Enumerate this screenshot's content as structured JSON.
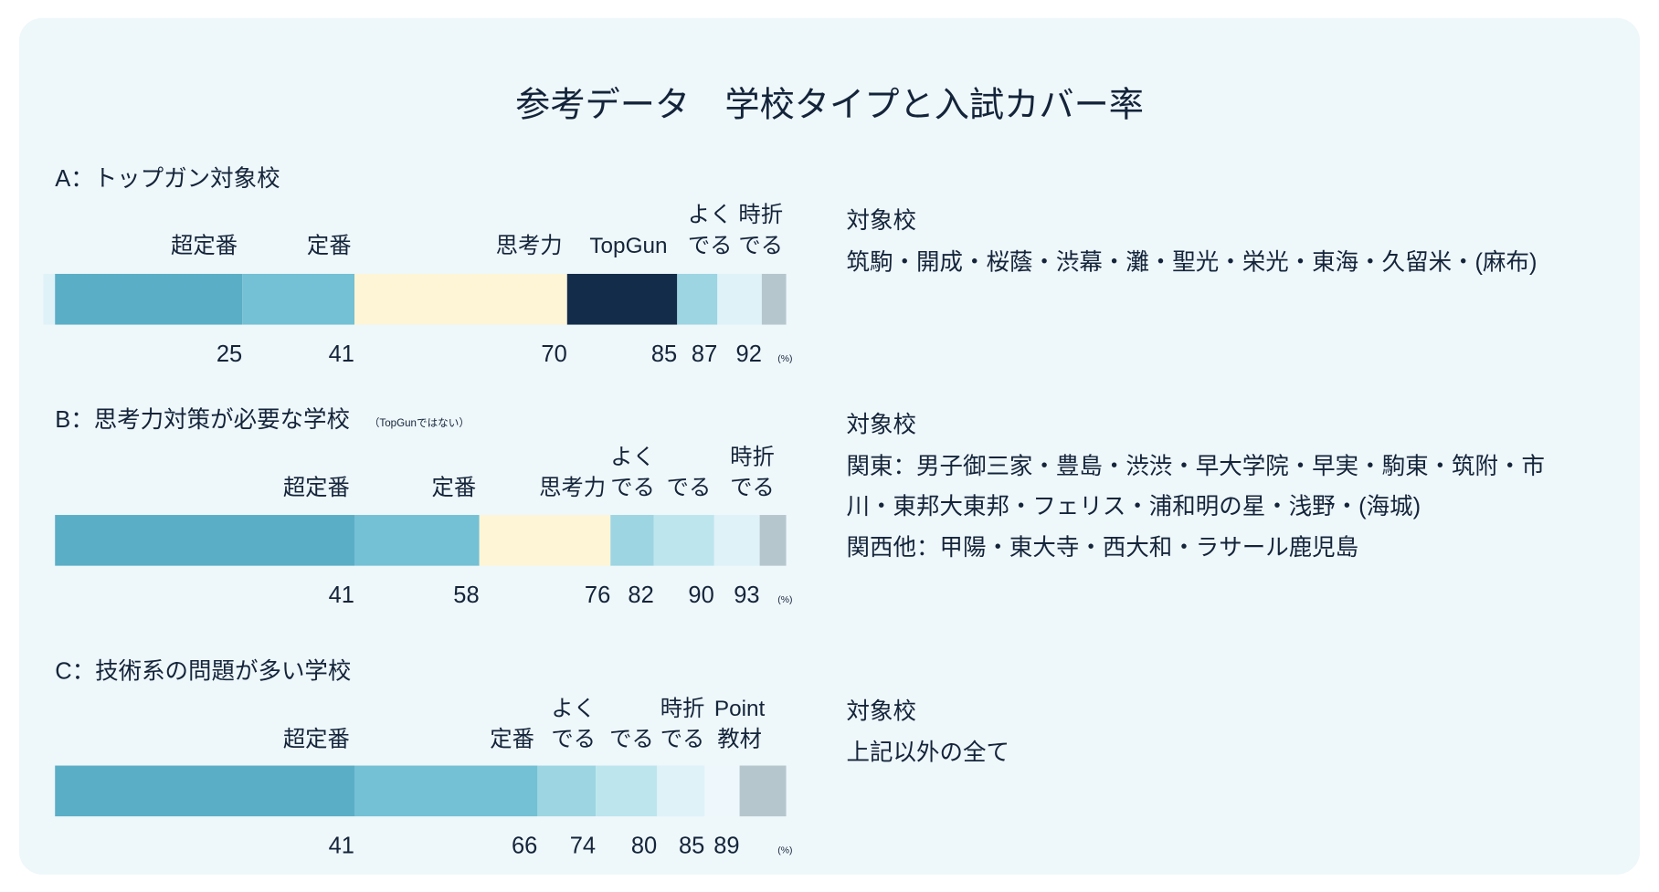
{
  "title": "参考データ　学校タイプと入試カバー率",
  "unit": "(%)",
  "colors": {
    "text": "#14243a",
    "card": "#eef7fa"
  },
  "sections": [
    {
      "heading": "A：トップガン対象校",
      "note": "",
      "segments": [
        {
          "label": "超定番",
          "end": 25,
          "color": "#5aaec6"
        },
        {
          "label": "定番",
          "end": 41,
          "color": "#74c0d4"
        },
        {
          "label": "思考力",
          "end": 70,
          "color": "#fdf5d6"
        },
        {
          "label": "TopGun",
          "end": 85,
          "color": "#132c4a"
        },
        {
          "label": "よく\nでる",
          "end": 87,
          "color": "#9dd5e2"
        },
        {
          "label": "時折\nでる",
          "end": 92,
          "color": "#dff2f8"
        },
        {
          "label": "",
          "end": 100,
          "color": "#b6c6cd"
        }
      ],
      "targets_label": "対象校",
      "targets": [
        "筑駒・開成・桜蔭・渋幕・灘・聖光・栄光・東海・久留米・(麻布)"
      ]
    },
    {
      "heading": "B：思考力対策が必要な学校",
      "note": "（TopGunではない）",
      "segments": [
        {
          "label": "超定番",
          "end": 41,
          "color": "#5aaec6"
        },
        {
          "label": "定番",
          "end": 58,
          "color": "#74c0d4"
        },
        {
          "label": "思考力",
          "end": 76,
          "color": "#fdf5d6"
        },
        {
          "label": "よく\nでる",
          "end": 82,
          "color": "#9dd5e2"
        },
        {
          "label": "でる",
          "end": 90,
          "color": "#bde5ee"
        },
        {
          "label": "時折\nでる",
          "end": 93,
          "color": "#dff2f8"
        },
        {
          "label": "",
          "end": 100,
          "color": "#b6c6cd"
        }
      ],
      "targets_label": "対象校",
      "targets": [
        "関東：男子御三家・豊島・渋渋・早大学院・早実・駒東・筑附・市",
        "川・東邦大東邦・フェリス・浦和明の星・浅野・(海城)",
        "関西他：甲陽・東大寺・西大和・ラサール鹿児島"
      ]
    },
    {
      "heading": "C：技術系の問題が多い学校",
      "note": "",
      "segments": [
        {
          "label": "超定番",
          "end": 41,
          "color": "#5aaec6"
        },
        {
          "label": "定番",
          "end": 66,
          "color": "#74c0d4"
        },
        {
          "label": "よく\nでる",
          "end": 74,
          "color": "#9dd5e2"
        },
        {
          "label": "でる",
          "end": 80,
          "color": "#bde5ee"
        },
        {
          "label": "時折\nでる",
          "end": 85,
          "color": "#dff2f8"
        },
        {
          "label": "",
          "end": 89,
          "color": "#eef8fc"
        },
        {
          "label": "Point\n教材",
          "end": 100,
          "color": "#b6c6cd"
        }
      ],
      "targets_label": "対象校",
      "targets": [
        "上記以外の全て"
      ]
    }
  ]
}
